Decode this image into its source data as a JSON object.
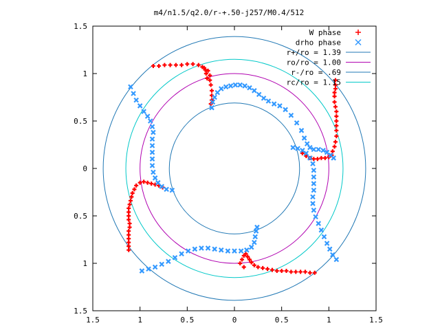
{
  "chart_data": {
    "type": "scatter",
    "title": "m4/n1.5/q2.0/r-+.50-j257/M0.4/512",
    "xlabel": "",
    "ylabel": "",
    "xlim": [
      -1.5,
      1.5
    ],
    "ylim": [
      -1.5,
      1.5
    ],
    "x_ticks": [
      -1.5,
      -1,
      -0.5,
      0,
      0.5,
      1,
      1.5
    ],
    "y_ticks": [
      1.5,
      1,
      0.5,
      0,
      -0.5,
      -1,
      -1.5
    ],
    "x_tick_labels": [
      "1.5",
      "1",
      "0.5",
      "0",
      "0.5",
      "1",
      "1.5"
    ],
    "y_tick_labels": [
      "1.5",
      "1",
      "0.5",
      "0",
      "0.5",
      "1",
      "1.5"
    ],
    "grid": false,
    "legend_position": "top-right",
    "circles": [
      {
        "name": "r+/ro = 1.39",
        "radius": 1.39,
        "color": "#1f77b4"
      },
      {
        "name": "ro/ro = 1.00",
        "radius": 1.0,
        "color": "#b000b0"
      },
      {
        "name": "r-/ro = .69",
        "radius": 0.69,
        "color": "#1f77b4"
      },
      {
        "name": "rc/ro = 1.15",
        "radius": 1.15,
        "color": "#00c8c8"
      }
    ],
    "series": [
      {
        "name": "W phase",
        "marker": "+",
        "color": "#ff0000",
        "points": [
          [
            -0.86,
            1.08
          ],
          [
            -0.8,
            1.08
          ],
          [
            -0.74,
            1.09
          ],
          [
            -0.68,
            1.09
          ],
          [
            -0.62,
            1.09
          ],
          [
            -0.56,
            1.09
          ],
          [
            -0.5,
            1.1
          ],
          [
            -0.44,
            1.1
          ],
          [
            -0.38,
            1.09
          ],
          [
            -0.32,
            1.06
          ],
          [
            -0.28,
            1.03
          ],
          [
            -0.26,
            0.98
          ],
          [
            -0.26,
            0.93
          ],
          [
            -0.25,
            0.88
          ],
          [
            -0.24,
            0.82
          ],
          [
            -0.24,
            0.77
          ],
          [
            -0.24,
            0.72
          ],
          [
            -0.25,
            0.68
          ],
          [
            -0.34,
            1.07
          ],
          [
            -0.31,
            1.04
          ],
          [
            -0.3,
            1.0
          ],
          [
            -0.29,
            0.95
          ],
          [
            1.07,
            0.93
          ],
          [
            1.07,
            0.88
          ],
          [
            1.07,
            0.84
          ],
          [
            1.06,
            0.8
          ],
          [
            1.06,
            0.76
          ],
          [
            1.06,
            0.7
          ],
          [
            1.07,
            0.65
          ],
          [
            1.08,
            0.6
          ],
          [
            1.08,
            0.55
          ],
          [
            1.08,
            0.5
          ],
          [
            1.08,
            0.45
          ],
          [
            1.08,
            0.4
          ],
          [
            1.08,
            0.34
          ],
          [
            1.07,
            0.28
          ],
          [
            1.06,
            0.23
          ],
          [
            1.04,
            0.18
          ],
          [
            1.03,
            0.14
          ],
          [
            1.0,
            0.12
          ],
          [
            0.96,
            0.11
          ],
          [
            0.92,
            0.11
          ],
          [
            0.88,
            0.1
          ],
          [
            0.84,
            0.1
          ],
          [
            0.8,
            0.11
          ],
          [
            0.76,
            0.13
          ],
          [
            0.72,
            0.16
          ],
          [
            0.85,
            -1.1
          ],
          [
            0.8,
            -1.1
          ],
          [
            0.75,
            -1.09
          ],
          [
            0.7,
            -1.09
          ],
          [
            0.65,
            -1.09
          ],
          [
            0.6,
            -1.09
          ],
          [
            0.55,
            -1.08
          ],
          [
            0.5,
            -1.08
          ],
          [
            0.45,
            -1.08
          ],
          [
            0.4,
            -1.07
          ],
          [
            0.35,
            -1.06
          ],
          [
            0.3,
            -1.05
          ],
          [
            0.25,
            -1.04
          ],
          [
            0.21,
            -1.02
          ],
          [
            0.18,
            -0.99
          ],
          [
            0.16,
            -0.96
          ],
          [
            0.14,
            -0.93
          ],
          [
            0.12,
            -0.9
          ],
          [
            0.1,
            -0.92
          ],
          [
            0.08,
            -0.96
          ],
          [
            0.06,
            -1.0
          ],
          [
            0.1,
            -1.04
          ],
          [
            -1.12,
            -0.86
          ],
          [
            -1.12,
            -0.82
          ],
          [
            -1.12,
            -0.78
          ],
          [
            -1.12,
            -0.74
          ],
          [
            -1.12,
            -0.7
          ],
          [
            -1.12,
            -0.66
          ],
          [
            -1.11,
            -0.62
          ],
          [
            -1.11,
            -0.58
          ],
          [
            -1.12,
            -0.54
          ],
          [
            -1.12,
            -0.5
          ],
          [
            -1.12,
            -0.46
          ],
          [
            -1.12,
            -0.42
          ],
          [
            -1.11,
            -0.38
          ],
          [
            -1.1,
            -0.34
          ],
          [
            -1.09,
            -0.3
          ],
          [
            -1.08,
            -0.26
          ],
          [
            -1.06,
            -0.22
          ],
          [
            -1.04,
            -0.18
          ],
          [
            -1.0,
            -0.15
          ],
          [
            -0.96,
            -0.14
          ],
          [
            -0.92,
            -0.15
          ],
          [
            -0.88,
            -0.16
          ],
          [
            -0.84,
            -0.17
          ],
          [
            -0.8,
            -0.18
          ],
          [
            -0.76,
            -0.2
          ]
        ]
      },
      {
        "name": "drho phase",
        "marker": "x",
        "color": "#3399ff",
        "points": [
          [
            -1.1,
            0.86
          ],
          [
            -1.07,
            0.79
          ],
          [
            -1.04,
            0.72
          ],
          [
            -1.0,
            0.66
          ],
          [
            -0.96,
            0.6
          ],
          [
            -0.92,
            0.55
          ],
          [
            -0.89,
            0.5
          ],
          [
            -0.87,
            0.44
          ],
          [
            -0.86,
            0.38
          ],
          [
            -0.87,
            0.31
          ],
          [
            -0.87,
            0.24
          ],
          [
            -0.87,
            0.17
          ],
          [
            -0.87,
            0.1
          ],
          [
            -0.87,
            0.03
          ],
          [
            -0.86,
            -0.04
          ],
          [
            -0.84,
            -0.1
          ],
          [
            -0.81,
            -0.15
          ],
          [
            -0.77,
            -0.19
          ],
          [
            -0.72,
            -0.22
          ],
          [
            -0.66,
            -0.23
          ],
          [
            -0.24,
            0.64
          ],
          [
            -0.23,
            0.7
          ],
          [
            -0.21,
            0.75
          ],
          [
            -0.18,
            0.8
          ],
          [
            -0.14,
            0.84
          ],
          [
            -0.09,
            0.86
          ],
          [
            -0.04,
            0.87
          ],
          [
            0.01,
            0.88
          ],
          [
            0.06,
            0.88
          ],
          [
            0.11,
            0.87
          ],
          [
            0.16,
            0.85
          ],
          [
            0.21,
            0.82
          ],
          [
            0.26,
            0.78
          ],
          [
            0.31,
            0.74
          ],
          [
            0.36,
            0.71
          ],
          [
            0.42,
            0.68
          ],
          [
            0.48,
            0.66
          ],
          [
            0.54,
            0.62
          ],
          [
            0.6,
            0.56
          ],
          [
            0.66,
            0.48
          ],
          [
            0.71,
            0.4
          ],
          [
            0.74,
            0.32
          ],
          [
            0.77,
            0.26
          ],
          [
            0.8,
            0.22
          ],
          [
            0.84,
            0.2
          ],
          [
            0.89,
            0.2
          ],
          [
            0.94,
            0.19
          ],
          [
            0.98,
            0.17
          ],
          [
            1.02,
            0.14
          ],
          [
            1.05,
            0.11
          ],
          [
            0.62,
            0.22
          ],
          [
            0.67,
            0.21
          ],
          [
            0.72,
            0.19
          ],
          [
            0.76,
            0.16
          ],
          [
            0.8,
            0.11
          ],
          [
            0.83,
            0.05
          ],
          [
            0.84,
            -0.02
          ],
          [
            0.84,
            -0.09
          ],
          [
            0.84,
            -0.16
          ],
          [
            0.84,
            -0.23
          ],
          [
            0.83,
            -0.3
          ],
          [
            0.83,
            -0.37
          ],
          [
            0.84,
            -0.44
          ],
          [
            0.86,
            -0.51
          ],
          [
            0.89,
            -0.58
          ],
          [
            0.92,
            -0.65
          ],
          [
            0.95,
            -0.72
          ],
          [
            0.98,
            -0.79
          ],
          [
            1.01,
            -0.85
          ],
          [
            1.08,
            -0.96
          ],
          [
            1.04,
            -0.91
          ],
          [
            -0.98,
            -1.08
          ],
          [
            -0.91,
            -1.06
          ],
          [
            -0.84,
            -1.04
          ],
          [
            -0.77,
            -1.01
          ],
          [
            -0.7,
            -0.98
          ],
          [
            -0.63,
            -0.94
          ],
          [
            -0.56,
            -0.9
          ],
          [
            -0.49,
            -0.87
          ],
          [
            -0.42,
            -0.85
          ],
          [
            -0.35,
            -0.84
          ],
          [
            -0.28,
            -0.84
          ],
          [
            -0.21,
            -0.85
          ],
          [
            -0.14,
            -0.86
          ],
          [
            -0.07,
            -0.87
          ],
          [
            0.0,
            -0.87
          ],
          [
            0.07,
            -0.87
          ],
          [
            0.13,
            -0.86
          ],
          [
            0.18,
            -0.83
          ],
          [
            0.21,
            -0.78
          ],
          [
            0.22,
            -0.72
          ],
          [
            0.23,
            -0.66
          ],
          [
            0.24,
            -0.62
          ]
        ]
      }
    ],
    "legend": [
      {
        "label": "W phase",
        "kind": "marker",
        "marker": "+",
        "color": "#ff0000"
      },
      {
        "label": "drho phase",
        "kind": "marker",
        "marker": "x",
        "color": "#3399ff"
      },
      {
        "label": "r+/ro = 1.39",
        "kind": "line",
        "color": "#1f77b4"
      },
      {
        "label": "ro/ro = 1.00",
        "kind": "line",
        "color": "#b000b0"
      },
      {
        "label": "r-/ro = .69",
        "kind": "line",
        "color": "#1f77b4"
      },
      {
        "label": "rc/ro = 1.15",
        "kind": "line",
        "color": "#00c8c8"
      }
    ]
  }
}
